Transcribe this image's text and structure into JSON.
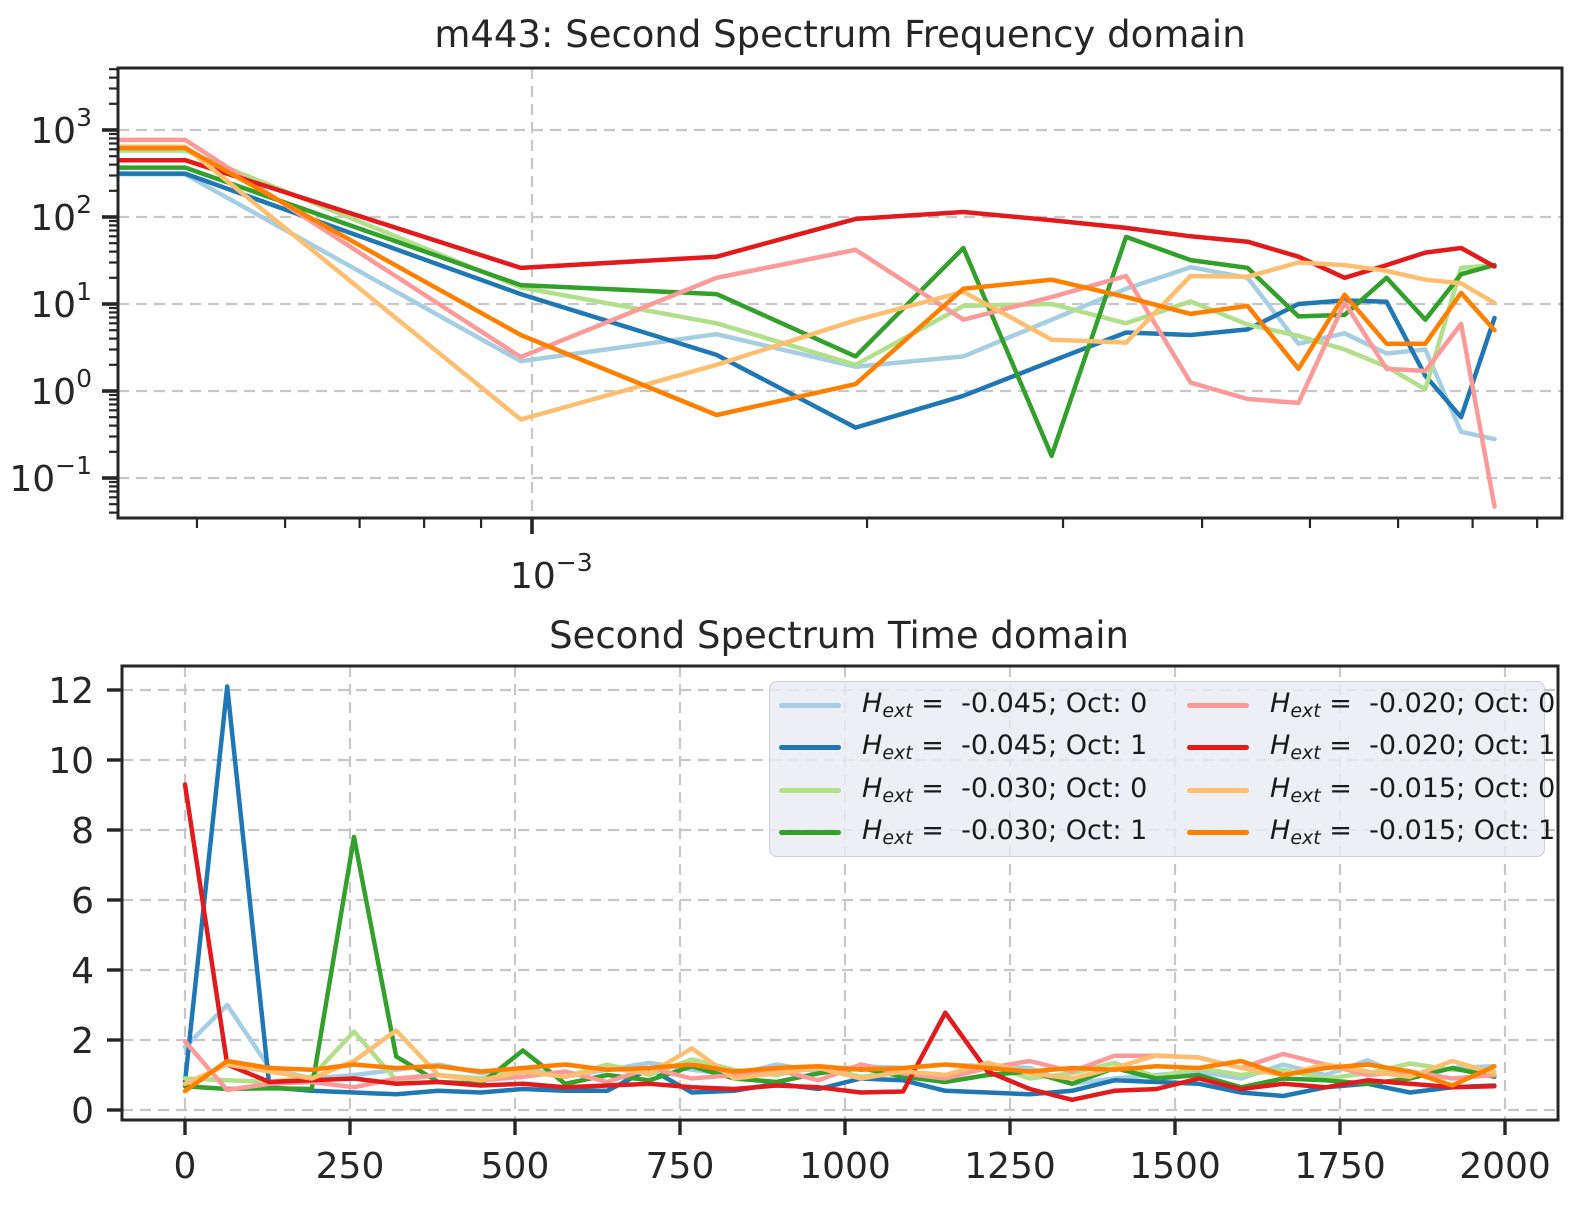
{
  "figure": {
    "title_top": "m443: Second Spectrum Frequency domain",
    "title_bottom": "Second Spectrum Time domain",
    "background": "#ffffff",
    "axes_color": "#262626",
    "grid_color": "#c7c7c7",
    "text_color": "#262626"
  },
  "palette": {
    "light_blue": "#a6cee3",
    "blue": "#1f78b4",
    "light_green": "#b2df8a",
    "green": "#33a02c",
    "pink": "#fb9a99",
    "red": "#e31a1c",
    "light_orange": "#fdbf6f",
    "orange": "#ff7f00"
  },
  "chart_data": [
    {
      "type": "line",
      "title": "m443: Second Spectrum Frequency domain",
      "x_scale": "log",
      "y_scale": "log",
      "xlim": [
        0.000424,
        0.00835
      ],
      "ylim": [
        0.035,
        5600
      ],
      "grid": true,
      "x_major_ticks": [
        {
          "base": "10",
          "exp": "−3",
          "value": 0.001
        }
      ],
      "x_minor_ticks": [
        0.0005,
        0.0006,
        0.0007,
        0.0008,
        0.0009,
        0.002,
        0.003,
        0.004,
        0.005,
        0.006,
        0.007,
        0.008
      ],
      "y_major_ticks": [
        {
          "base": "10",
          "exp": "3",
          "value": 1000
        },
        {
          "base": "10",
          "exp": "2",
          "value": 100
        },
        {
          "base": "10",
          "exp": "1",
          "value": 10
        },
        {
          "base": "10",
          "exp": "0",
          "value": 1
        },
        {
          "base": "10",
          "exp": "−1",
          "value": 0.1
        }
      ],
      "x": [
        0.000425,
        0.000488,
        0.000977,
        0.001465,
        0.001953,
        0.002441,
        0.00293,
        0.003418,
        0.003906,
        0.004395,
        0.004883,
        0.005371,
        0.005859,
        0.006348,
        0.006836,
        0.007324
      ],
      "series": [
        {
          "name": "Hext = -0.045; Oct: 0",
          "color": "#a6cee3",
          "values": [
            310,
            310,
            2.2,
            4.5,
            1.9,
            2.5,
            6.6,
            15,
            26.5,
            20,
            3.5,
            4.6,
            2.7,
            3.0,
            0.34,
            0.28
          ]
        },
        {
          "name": "Hext = -0.045; Oct: 1",
          "color": "#1f78b4",
          "values": [
            315,
            315,
            13,
            2.6,
            0.38,
            0.88,
            2.2,
            4.7,
            4.4,
            5.1,
            10,
            11,
            10.6,
            1.5,
            0.5,
            6.9
          ]
        },
        {
          "name": "Hext = -0.030; Oct: 0",
          "color": "#b2df8a",
          "values": [
            580,
            580,
            15.5,
            6,
            2.0,
            9.5,
            10,
            6,
            10.7,
            5.8,
            4.3,
            3.0,
            1.9,
            1.05,
            26,
            28
          ]
        },
        {
          "name": "Hext = -0.030; Oct: 1",
          "color": "#33a02c",
          "values": [
            370,
            370,
            16.5,
            13,
            2.5,
            44,
            0.18,
            59,
            32,
            26,
            7.2,
            7.5,
            20,
            6.6,
            22,
            28
          ]
        },
        {
          "name": "Hext = -0.020; Oct: 0",
          "color": "#fb9a99",
          "values": [
            770,
            770,
            2.45,
            20,
            42,
            6.6,
            12,
            21,
            1.25,
            0.81,
            0.73,
            10.4,
            1.8,
            1.7,
            5.9,
            0.047
          ]
        },
        {
          "name": "Hext = -0.020; Oct: 1",
          "color": "#e31a1c",
          "values": [
            450,
            450,
            26,
            35,
            95,
            114,
            92,
            75,
            60,
            52,
            35,
            20,
            28,
            39,
            44,
            27
          ]
        },
        {
          "name": "Hext = -0.015; Oct: 0",
          "color": "#fdbf6f",
          "values": [
            640,
            640,
            0.47,
            2.0,
            6.5,
            13.8,
            3.9,
            3.6,
            21,
            20.6,
            30,
            28,
            24,
            19,
            17.3,
            10.3
          ]
        },
        {
          "name": "Hext = -0.015; Oct: 1",
          "color": "#ff7f00",
          "values": [
            620,
            620,
            4.4,
            0.53,
            1.2,
            15,
            19,
            12,
            7.7,
            9.5,
            1.8,
            12.8,
            3.5,
            3.5,
            13.4,
            5.0
          ]
        }
      ]
    },
    {
      "type": "line",
      "title": "Second Spectrum Time domain",
      "x_scale": "linear",
      "y_scale": "linear",
      "xlim": [
        -96,
        2085
      ],
      "ylim": [
        -0.27,
        12.7
      ],
      "grid": true,
      "x_major_ticks": [
        0,
        250,
        500,
        750,
        1000,
        1250,
        1500,
        1750,
        2000
      ],
      "y_major_ticks": [
        0,
        2,
        4,
        6,
        8,
        10,
        12
      ],
      "x": [
        0,
        64,
        128,
        192,
        256,
        320,
        384,
        448,
        512,
        576,
        640,
        704,
        768,
        832,
        896,
        960,
        1024,
        1088,
        1152,
        1216,
        1280,
        1344,
        1408,
        1472,
        1536,
        1600,
        1664,
        1728,
        1792,
        1856,
        1920,
        1984
      ],
      "series": [
        {
          "name": "Hext = -0.045; Oct: 0",
          "color": "#a6cee3",
          "values": [
            1.8,
            3.0,
            1.2,
            0.9,
            1.0,
            1.15,
            1.3,
            1.05,
            1.2,
            0.95,
            1.15,
            1.35,
            1.15,
            1.0,
            1.3,
            1.1,
            1.25,
            1.2,
            1.3,
            1.25,
            1.2,
            0.75,
            0.9,
            1.0,
            1.1,
            0.9,
            1.3,
            1.0,
            1.42,
            0.9,
            1.2,
            1.25
          ]
        },
        {
          "name": "Hext = -0.045; Oct: 1",
          "color": "#1f78b4",
          "values": [
            0.8,
            12.1,
            0.65,
            0.55,
            0.5,
            0.45,
            0.55,
            0.5,
            0.6,
            0.55,
            0.55,
            1.18,
            0.5,
            0.55,
            0.75,
            0.6,
            0.9,
            0.85,
            0.55,
            0.5,
            0.45,
            0.55,
            0.85,
            0.8,
            0.75,
            0.5,
            0.4,
            0.65,
            0.75,
            0.5,
            0.65,
            0.7
          ]
        },
        {
          "name": "Hext = -0.030; Oct: 0",
          "color": "#b2df8a",
          "values": [
            0.9,
            0.85,
            0.8,
            0.95,
            2.24,
            0.85,
            1.0,
            0.9,
            1.15,
            0.95,
            1.3,
            1.0,
            1.45,
            1.15,
            1.0,
            1.25,
            0.95,
            1.1,
            1.0,
            1.3,
            0.9,
            1.05,
            1.35,
            0.95,
            1.2,
            1.0,
            1.15,
            0.9,
            1.05,
            1.33,
            1.15,
            1.1
          ]
        },
        {
          "name": "Hext = -0.030; Oct: 1",
          "color": "#33a02c",
          "values": [
            0.68,
            0.6,
            0.62,
            0.6,
            7.8,
            1.53,
            0.8,
            0.75,
            1.7,
            0.75,
            1.0,
            0.85,
            1.25,
            0.9,
            0.8,
            1.05,
            1.2,
            0.95,
            0.8,
            1.0,
            1.1,
            0.75,
            1.2,
            0.9,
            1.0,
            0.65,
            0.9,
            0.85,
            0.75,
            0.9,
            1.2,
            0.95
          ]
        },
        {
          "name": "Hext = -0.020; Oct: 0",
          "color": "#fb9a99",
          "values": [
            1.96,
            0.57,
            0.75,
            0.8,
            0.65,
            0.9,
            1.0,
            0.85,
            0.95,
            1.1,
            0.8,
            1.2,
            0.9,
            1.0,
            1.15,
            0.85,
            1.3,
            1.05,
            0.9,
            1.2,
            1.4,
            1.1,
            1.55,
            1.55,
            1.5,
            1.2,
            1.6,
            1.3,
            1.0,
            1.1,
            0.9,
            1.0
          ]
        },
        {
          "name": "Hext = -0.020; Oct: 1",
          "color": "#e31a1c",
          "values": [
            9.3,
            1.3,
            0.8,
            0.85,
            0.9,
            0.75,
            0.8,
            0.7,
            0.75,
            0.65,
            0.7,
            0.75,
            0.65,
            0.6,
            0.7,
            0.65,
            0.5,
            0.53,
            2.78,
            1.1,
            0.6,
            0.29,
            0.55,
            0.6,
            0.9,
            0.6,
            0.75,
            0.65,
            0.85,
            0.75,
            0.65,
            0.68
          ]
        },
        {
          "name": "Hext = -0.015; Oct: 0",
          "color": "#fdbf6f",
          "values": [
            0.75,
            1.3,
            1.1,
            0.9,
            1.4,
            2.27,
            1.0,
            0.85,
            1.1,
            0.95,
            1.2,
            1.05,
            1.76,
            0.9,
            1.05,
            1.2,
            0.9,
            1.1,
            1.0,
            1.35,
            1.05,
            0.9,
            1.2,
            1.56,
            1.5,
            1.2,
            1.0,
            1.3,
            1.1,
            0.95,
            1.4,
            1.05
          ]
        },
        {
          "name": "Hext = -0.015; Oct: 1",
          "color": "#ff7f00",
          "values": [
            0.54,
            1.4,
            1.2,
            1.15,
            1.3,
            1.2,
            1.25,
            1.1,
            1.2,
            1.3,
            1.15,
            1.2,
            1.3,
            1.1,
            1.2,
            1.25,
            1.15,
            1.2,
            1.3,
            1.2,
            1.1,
            1.2,
            1.15,
            1.25,
            1.2,
            1.4,
            1.0,
            1.2,
            1.3,
            1.1,
            0.7,
            1.25
          ]
        }
      ]
    }
  ],
  "legend": {
    "columns": 2,
    "entries": [
      {
        "color": "#a6cee3",
        "var": "H",
        "sub": "ext",
        "rest": " =  -0.045; Oct: 0"
      },
      {
        "color": "#1f78b4",
        "var": "H",
        "sub": "ext",
        "rest": " =  -0.045; Oct: 1"
      },
      {
        "color": "#b2df8a",
        "var": "H",
        "sub": "ext",
        "rest": " =  -0.030; Oct: 0"
      },
      {
        "color": "#33a02c",
        "var": "H",
        "sub": "ext",
        "rest": " =  -0.030; Oct: 1"
      },
      {
        "color": "#fb9a99",
        "var": "H",
        "sub": "ext",
        "rest": " =  -0.020; Oct: 0"
      },
      {
        "color": "#e31a1c",
        "var": "H",
        "sub": "ext",
        "rest": " =  -0.020; Oct: 1"
      },
      {
        "color": "#fdbf6f",
        "var": "H",
        "sub": "ext",
        "rest": " =  -0.015; Oct: 0"
      },
      {
        "color": "#ff7f00",
        "var": "H",
        "sub": "ext",
        "rest": " =  -0.015; Oct: 1"
      }
    ]
  }
}
